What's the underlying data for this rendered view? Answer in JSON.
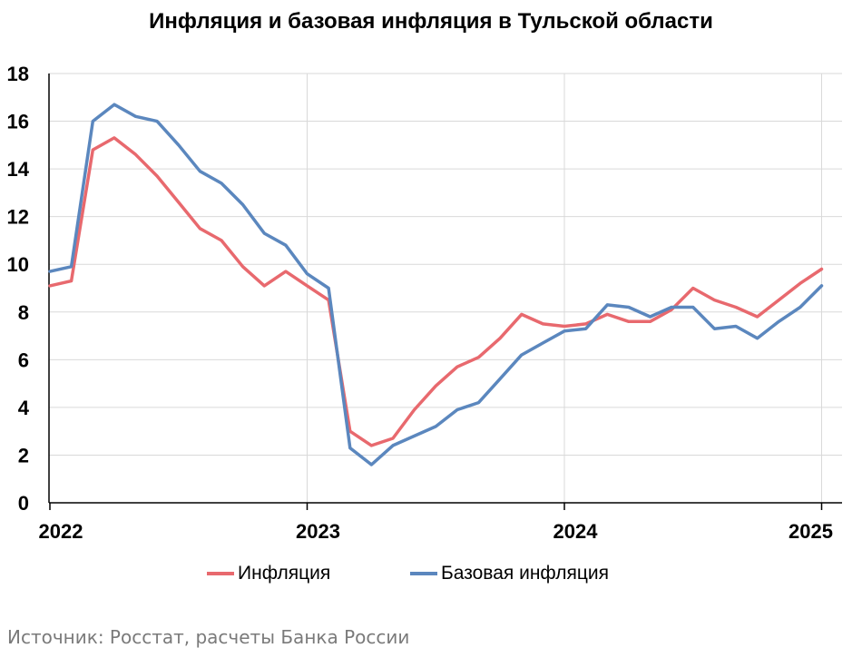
{
  "title": "Инфляция и базовая инфляция в Тульской области",
  "source": "Источник: Росстат, расчеты Банка России",
  "chart_data": {
    "type": "line",
    "title": "Инфляция и базовая инфляция в Тульской области",
    "xlabel": "",
    "ylabel": "",
    "ylim": [
      0,
      18
    ],
    "y_ticks": [
      0,
      2,
      4,
      6,
      8,
      10,
      12,
      14,
      16,
      18
    ],
    "x_ticks": [
      "2022",
      "2023",
      "2024",
      "2025"
    ],
    "grid": true,
    "legend_position": "bottom",
    "x": [
      "2022-01",
      "2022-02",
      "2022-03",
      "2022-04",
      "2022-05",
      "2022-06",
      "2022-07",
      "2022-08",
      "2022-09",
      "2022-10",
      "2022-11",
      "2022-12",
      "2023-01",
      "2023-02",
      "2023-03",
      "2023-04",
      "2023-05",
      "2023-06",
      "2023-07",
      "2023-08",
      "2023-09",
      "2023-10",
      "2023-11",
      "2023-12",
      "2024-01",
      "2024-02",
      "2024-03",
      "2024-04",
      "2024-05",
      "2024-06",
      "2024-07",
      "2024-08",
      "2024-09",
      "2024-10",
      "2024-11",
      "2024-12",
      "2025-01"
    ],
    "series": [
      {
        "name": "Инфляция",
        "color": "#e8696e",
        "values": [
          9.1,
          9.3,
          14.8,
          15.3,
          14.6,
          13.7,
          12.6,
          11.5,
          11.0,
          9.9,
          9.1,
          9.7,
          9.1,
          8.5,
          3.0,
          2.4,
          2.7,
          3.9,
          4.9,
          5.7,
          6.1,
          6.9,
          7.9,
          7.5,
          7.4,
          7.5,
          7.9,
          7.6,
          7.6,
          8.1,
          9.0,
          8.5,
          8.2,
          7.8,
          8.5,
          9.2,
          9.8
        ]
      },
      {
        "name": "Базовая инфляция",
        "color": "#5b87be",
        "values": [
          9.7,
          9.9,
          16.0,
          16.7,
          16.2,
          16.0,
          15.0,
          13.9,
          13.4,
          12.5,
          11.3,
          10.8,
          9.6,
          9.0,
          2.3,
          1.6,
          2.4,
          2.8,
          3.2,
          3.9,
          4.2,
          5.2,
          6.2,
          6.7,
          7.2,
          7.3,
          8.3,
          8.2,
          7.8,
          8.2,
          8.2,
          7.3,
          7.4,
          6.9,
          7.6,
          8.2,
          9.1
        ]
      }
    ]
  }
}
